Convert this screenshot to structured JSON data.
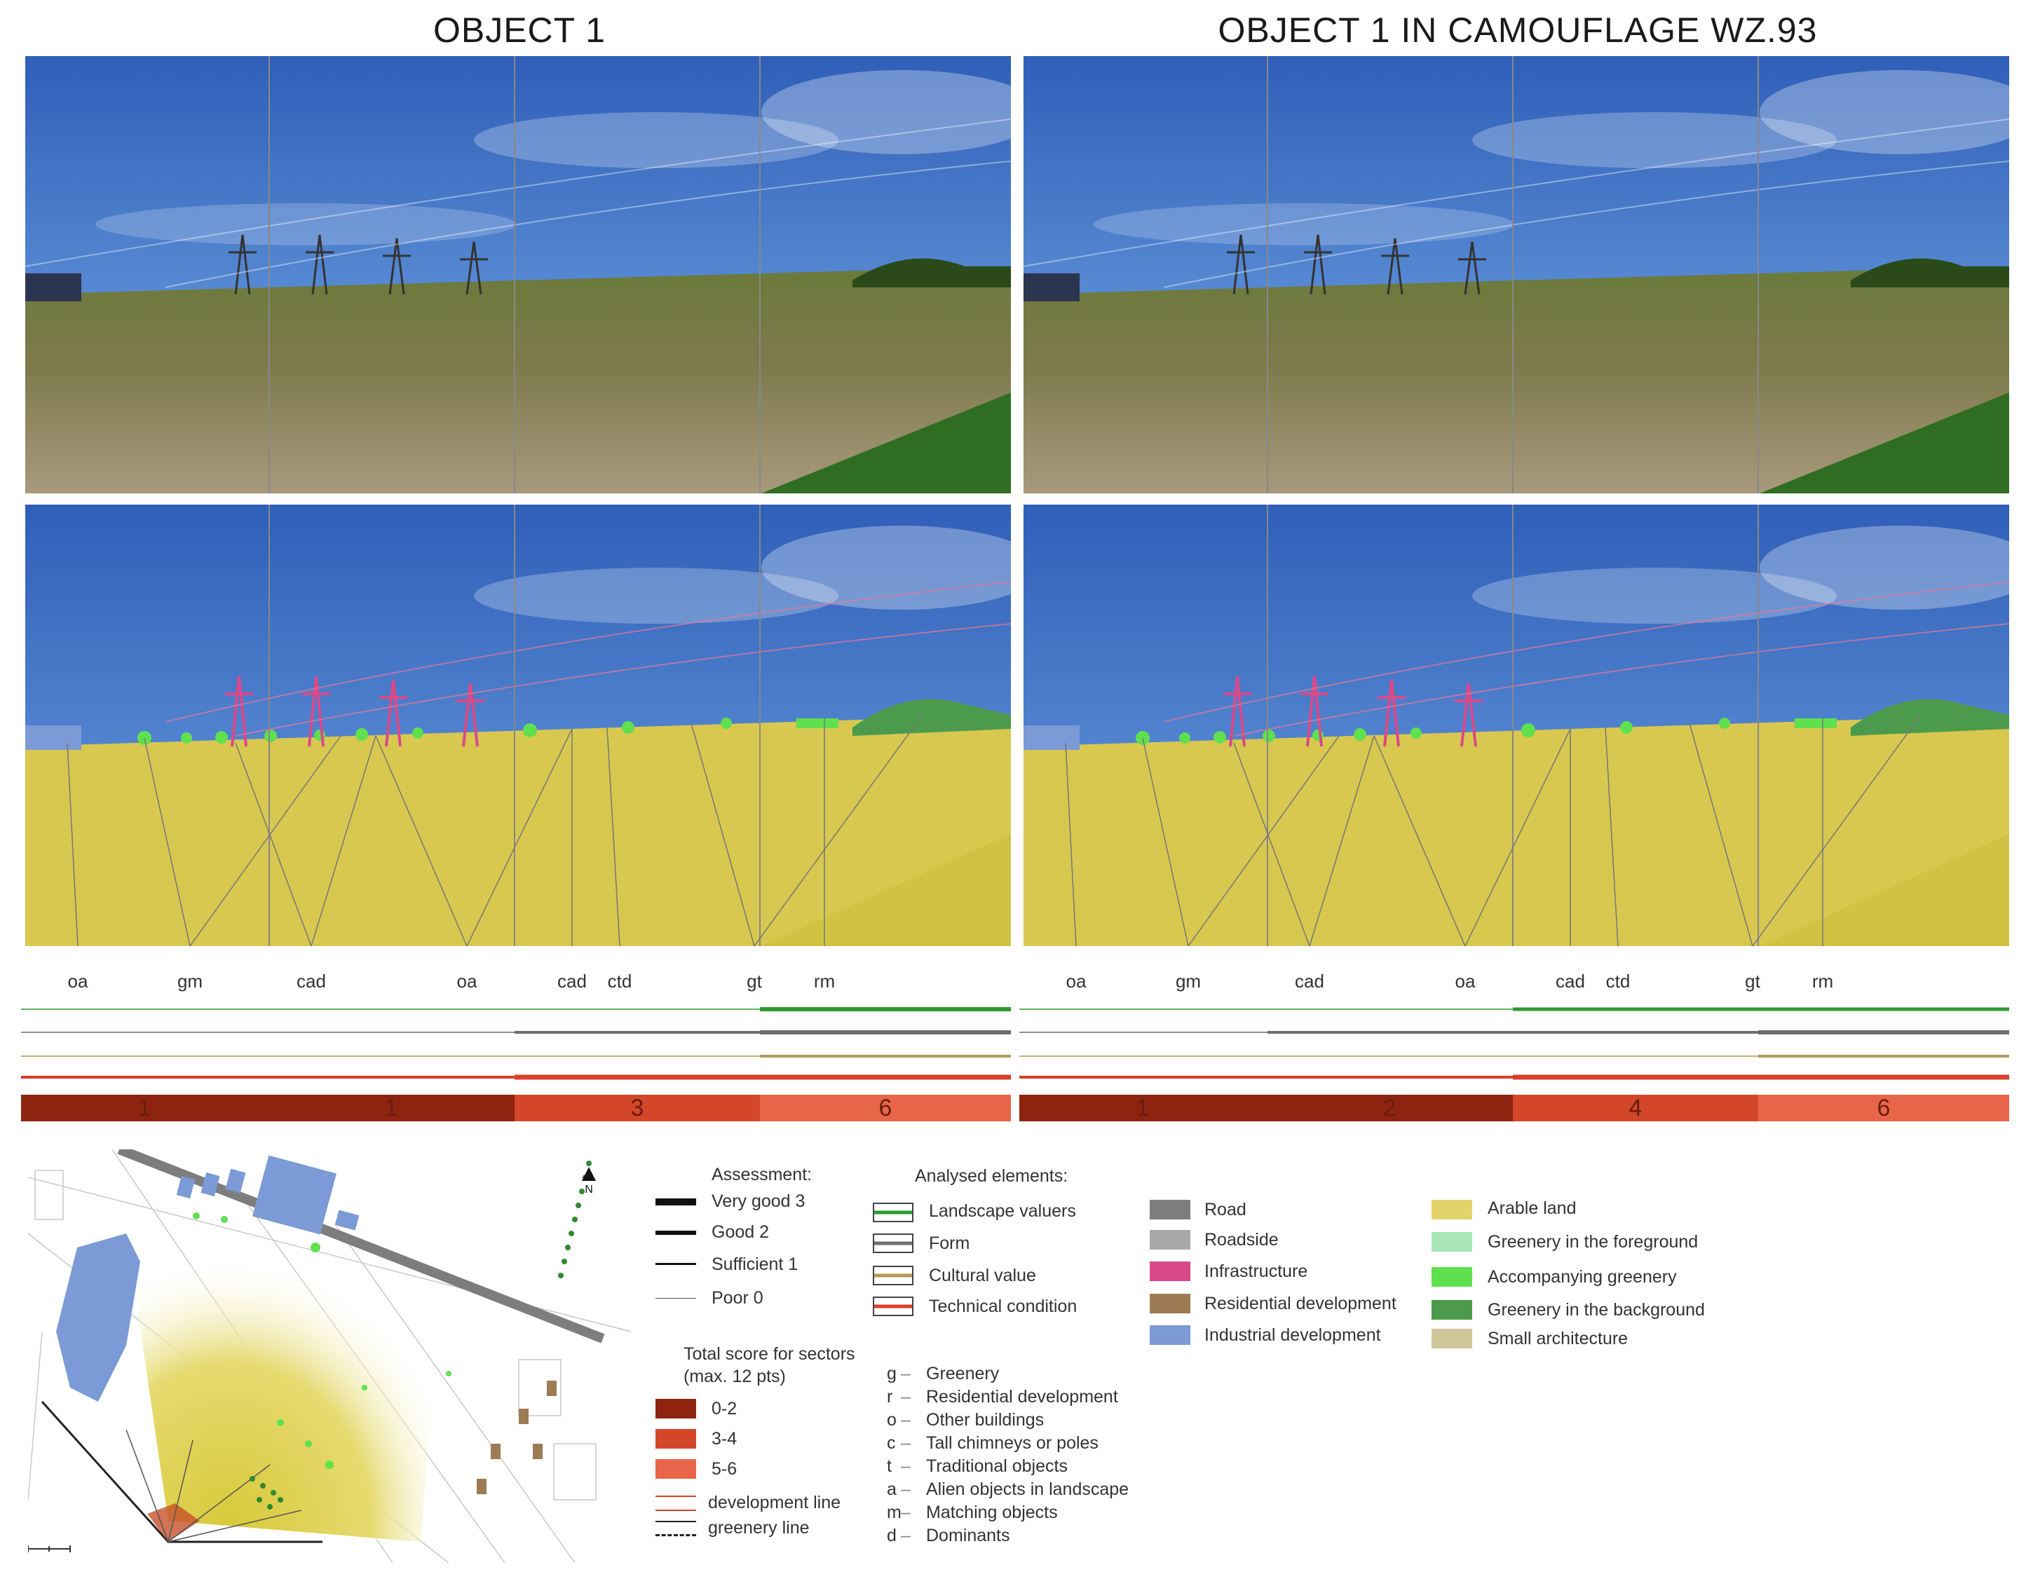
{
  "titles": {
    "left": "OBJECT 1",
    "right": "OBJECT 1 IN CAMOUFLAGE  WZ.93"
  },
  "codes": [
    "oa",
    "gm",
    "cad",
    "oa",
    "cad",
    "ctd",
    "gt",
    "rm"
  ],
  "scores": {
    "left": [
      "1",
      "1",
      "3",
      "6"
    ],
    "right": [
      "1",
      "2",
      "4",
      "6"
    ]
  },
  "colors": {
    "score_0_2": "#8e2410",
    "score_3_4": "#d4462a",
    "score_5_6": "#e8654a",
    "landscape_valuers": "#2e9a2e",
    "form": "#6e6e6e",
    "cultural_value": "#b39a55",
    "technical_condition": "#d8402a",
    "road": "#7d7d7d",
    "roadside": "#a9a9a9",
    "infrastructure": "#d9498a",
    "residential": "#9c7b55",
    "industrial": "#7b9ad6",
    "arable": "#e3d36a",
    "greenery_foreground": "#a8e6b6",
    "accompanying_greenery": "#5fe04f",
    "greenery_background": "#4c9a4c",
    "small_architecture": "#cfc79a"
  },
  "legend": {
    "assessment": {
      "title": "Assessment:",
      "items": [
        "Very good 3",
        "Good 2",
        "Sufficient 1",
        "Poor 0"
      ]
    },
    "total_score": {
      "title_line1": "Total score for sectors",
      "title_line2": "(max. 12 pts)",
      "items": [
        "0-2",
        "3-4",
        "5-6"
      ]
    },
    "lines": [
      "development line",
      "greenery line"
    ],
    "analysed": {
      "title": "Analysed elements:",
      "items": [
        "Landscape valuers",
        "Form",
        "Cultural value",
        "Technical condition"
      ]
    },
    "abbreviations": [
      {
        "key": "g",
        "sep": "–",
        "label": "Greenery"
      },
      {
        "key": "r",
        "sep": "–",
        "label": "Residential development"
      },
      {
        "key": "o",
        "sep": "–",
        "label": "Other buildings"
      },
      {
        "key": "c",
        "sep": "–",
        "label": "Tall chimneys or poles"
      },
      {
        "key": "t",
        "sep": "–",
        "label": "Traditional objects"
      },
      {
        "key": "a",
        "sep": "–",
        "label": "Alien objects in landscape"
      },
      {
        "key": "m",
        "sep": "–",
        "label": "Matching objects"
      },
      {
        "key": "d",
        "sep": "–",
        "label": "Dominants"
      }
    ],
    "land_use_1": [
      "Road",
      "Roadside",
      "Infrastructure",
      "Residential development",
      "Industrial development"
    ],
    "land_use_2": [
      "Arable land",
      "Greenery in the foreground",
      "Accompanying greenery",
      "Greenery in the background",
      "Small architecture"
    ]
  },
  "map": {
    "north": "N"
  }
}
